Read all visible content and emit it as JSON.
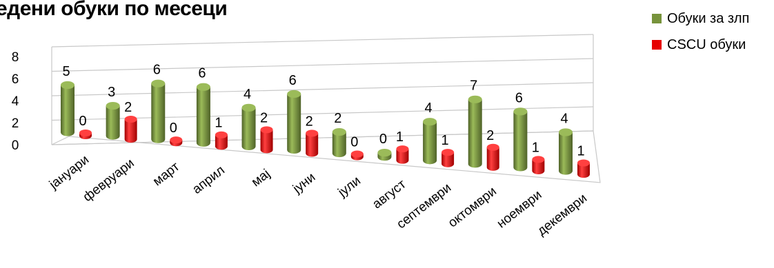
{
  "title": "едени обуки по месеци",
  "legend": {
    "series1": "Обуки за злп",
    "series2": "CSCU обуки"
  },
  "colors": {
    "series1": "#77933C",
    "series1_light": "#9BBB59",
    "series1_dark": "#4F6228",
    "series2": "#E60000",
    "series2_light": "#FF4040",
    "series2_dark": "#A00000"
  },
  "chart_data": {
    "type": "bar",
    "title": "едени обуки по месеци",
    "categories": [
      "јануари",
      "февруари",
      "март",
      "април",
      "мај",
      "јуни",
      "јули",
      "август",
      "септември",
      "октомври",
      "ноември",
      "декември"
    ],
    "series": [
      {
        "name": "Обуки за злп",
        "values": [
          5,
          3,
          6,
          6,
          4,
          6,
          2,
          0,
          4,
          7,
          6,
          4
        ]
      },
      {
        "name": "CSCU обуки",
        "values": [
          0,
          2,
          0,
          1,
          2,
          2,
          0,
          1,
          1,
          2,
          1,
          1
        ]
      }
    ],
    "y_ticks": [
      "0",
      "2",
      "4",
      "6",
      "8"
    ],
    "ylim": [
      0,
      8
    ],
    "grid": true,
    "legend_position": "top-right",
    "style": "3d-cylinder"
  }
}
